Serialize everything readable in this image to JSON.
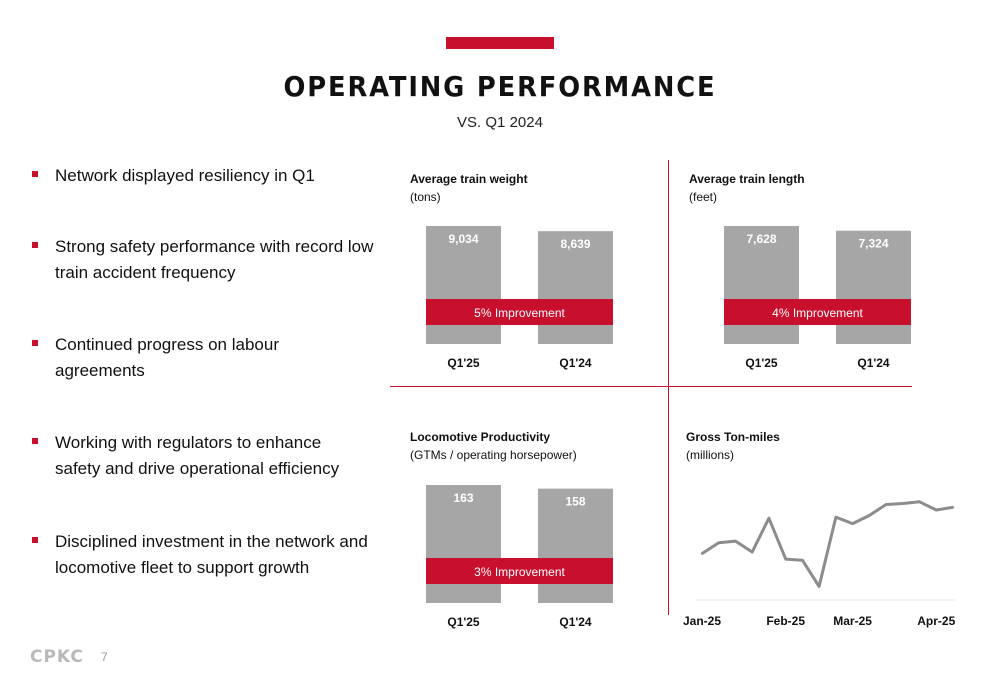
{
  "header": {
    "title": "OPERATING PERFORMANCE",
    "subtitle": "VS. Q1 2024"
  },
  "colors": {
    "accent": "#c8102e",
    "bar": "#a6a6a6",
    "line": "#8c8c8c"
  },
  "bullets": [
    "Network displayed resiliency in Q1",
    "Strong safety performance with record low train accident frequency",
    "Continued progress on labour agreements",
    "Working with regulators to enhance safety and drive operational efficiency",
    "Disciplined investment in the network and locomotive fleet to support growth"
  ],
  "footer": {
    "logo": "CPKC",
    "page": "7"
  },
  "chart_data": [
    {
      "type": "bar",
      "title": "Average train weight",
      "unit": "(tons)",
      "categories": [
        "Q1'25",
        "Q1'24"
      ],
      "values": [
        9034,
        8639
      ],
      "value_labels": [
        "9,034",
        "8,639"
      ],
      "banner": "5% Improvement"
    },
    {
      "type": "bar",
      "title": "Average train length",
      "unit": "(feet)",
      "categories": [
        "Q1'25",
        "Q1'24"
      ],
      "values": [
        7628,
        7324
      ],
      "value_labels": [
        "7,628",
        "7,324"
      ],
      "banner": "4% Improvement"
    },
    {
      "type": "bar",
      "title": "Locomotive Productivity",
      "unit": "(GTMs / operating horsepower)",
      "categories": [
        "Q1'25",
        "Q1'24"
      ],
      "values": [
        163,
        158
      ],
      "value_labels": [
        "163",
        "158"
      ],
      "banner": "3% Improvement"
    },
    {
      "type": "line",
      "title": "Gross Ton-miles",
      "unit": "(millions)",
      "x_tick_labels": [
        "Jan-25",
        "Feb-25",
        "Mar-25",
        "Apr-25"
      ],
      "values": [
        0.55,
        0.75,
        0.78,
        0.58,
        1.2,
        0.45,
        0.43,
        -0.05,
        1.22,
        1.1,
        1.25,
        1.45,
        1.47,
        1.5,
        1.35,
        1.4
      ],
      "ylim": [
        -0.3,
        1.9
      ]
    }
  ]
}
